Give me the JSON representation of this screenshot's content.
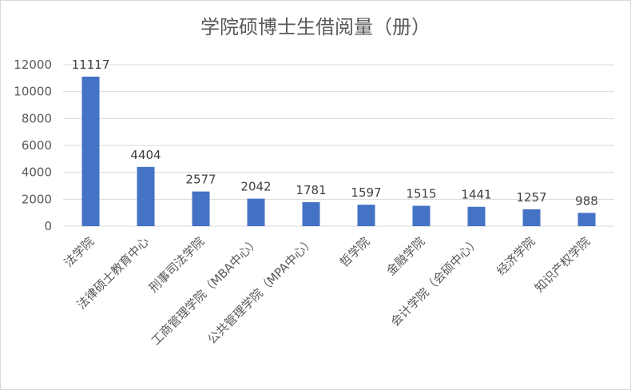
{
  "chart_data": {
    "type": "bar",
    "title": "学院硕博士生借阅量（册）",
    "xlabel": "",
    "ylabel": "",
    "categories": [
      "法学院",
      "法律硕士教育中心",
      "刑事司法学院",
      "工商管理学院（MBA中心）",
      "公共管理学院（MPA中心）",
      "哲学院",
      "金融学院",
      "会计学院（会硕中心）",
      "经济学院",
      "知识产权学院"
    ],
    "values": [
      11117,
      4404,
      2577,
      2042,
      1781,
      1597,
      1515,
      1441,
      1257,
      988
    ],
    "ylim": [
      0,
      12000
    ],
    "yticks": [
      0,
      2000,
      4000,
      6000,
      8000,
      10000,
      12000
    ],
    "grid": true,
    "legend": "none",
    "bar_color": "#4472c4",
    "grid_color": "#d9d9d9"
  }
}
